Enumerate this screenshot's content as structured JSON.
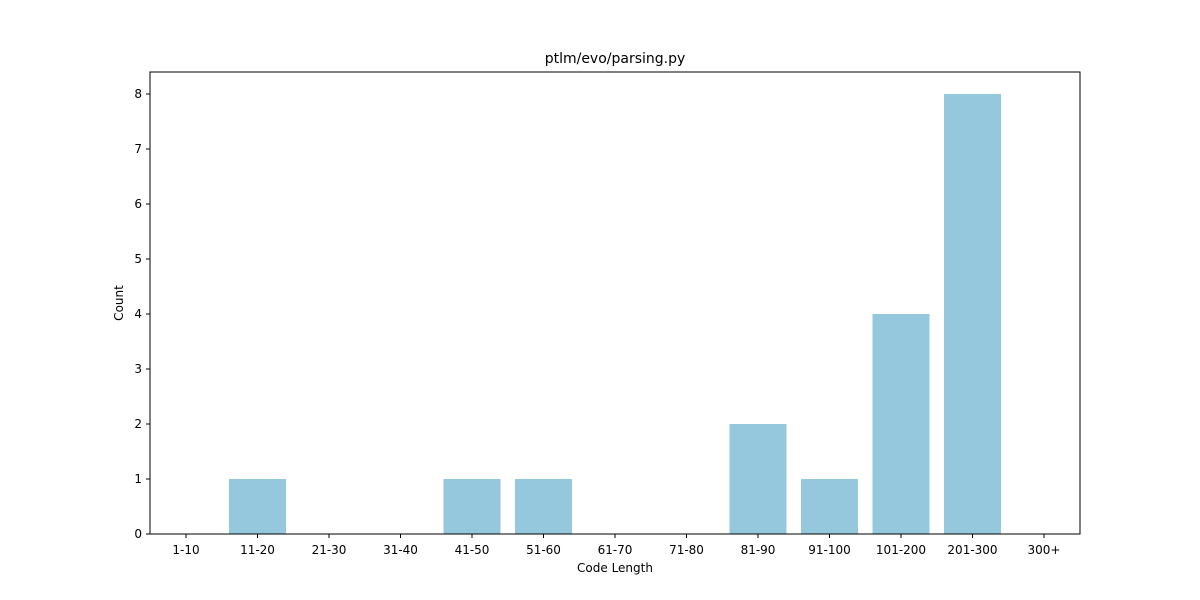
{
  "chart_data": {
    "type": "bar",
    "title": "ptlm/evo/parsing.py",
    "xlabel": "Code Length",
    "ylabel": "Count",
    "categories": [
      "1-10",
      "11-20",
      "21-30",
      "31-40",
      "41-50",
      "51-60",
      "61-70",
      "71-80",
      "81-90",
      "91-100",
      "101-200",
      "201-300",
      "300+"
    ],
    "values": [
      0,
      1,
      0,
      0,
      1,
      1,
      0,
      0,
      2,
      1,
      4,
      8,
      0
    ],
    "ylim": [
      0,
      8.4
    ],
    "yticks": [
      0,
      1,
      2,
      3,
      4,
      5,
      6,
      7,
      8
    ],
    "bar_color": "#95c8dc",
    "grid": false
  }
}
